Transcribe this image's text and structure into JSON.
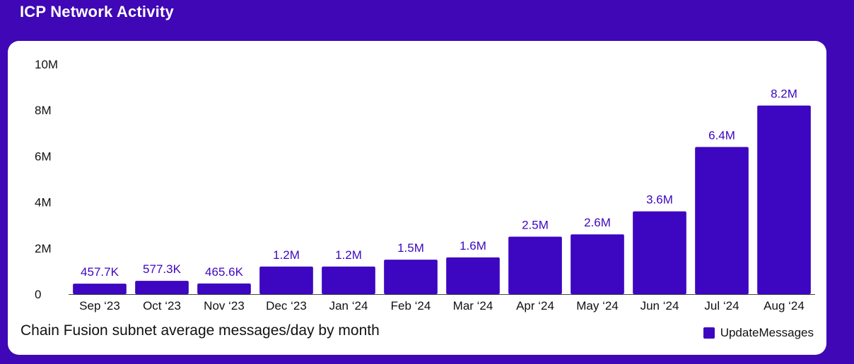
{
  "page": {
    "title": "ICP Network Activity"
  },
  "colors": {
    "background": "#3f07b5",
    "bar": "#3d06c0",
    "data_label": "#3d06c0"
  },
  "chart_data": {
    "type": "bar",
    "title": "",
    "subtitle": "Chain Fusion subnet average messages/day by month",
    "xlabel": "",
    "ylabel": "",
    "ylim": [
      0,
      10000000
    ],
    "yticks": [
      0,
      2000000,
      4000000,
      6000000,
      8000000,
      10000000
    ],
    "ytick_labels": [
      "0",
      "2M",
      "4M",
      "6M",
      "8M",
      "10M"
    ],
    "categories": [
      "Sep ‘23",
      "Oct ‘23",
      "Nov ‘23",
      "Dec ‘23",
      "Jan ‘24",
      "Feb ‘24",
      "Mar ‘24",
      "Apr ‘24",
      "May ‘24",
      "Jun ‘24",
      "Jul ‘24",
      "Aug ‘24"
    ],
    "series": [
      {
        "name": "UpdateMessages",
        "values": [
          457700,
          577300,
          465600,
          1200000,
          1200000,
          1500000,
          1600000,
          2500000,
          2600000,
          3600000,
          6400000,
          8200000
        ],
        "labels": [
          "457.7K",
          "577.3K",
          "465.6K",
          "1.2M",
          "1.2M",
          "1.5M",
          "1.6M",
          "2.5M",
          "2.6M",
          "3.6M",
          "6.4M",
          "8.2M"
        ]
      }
    ],
    "grid": false,
    "legend_position": "bottom-right"
  }
}
